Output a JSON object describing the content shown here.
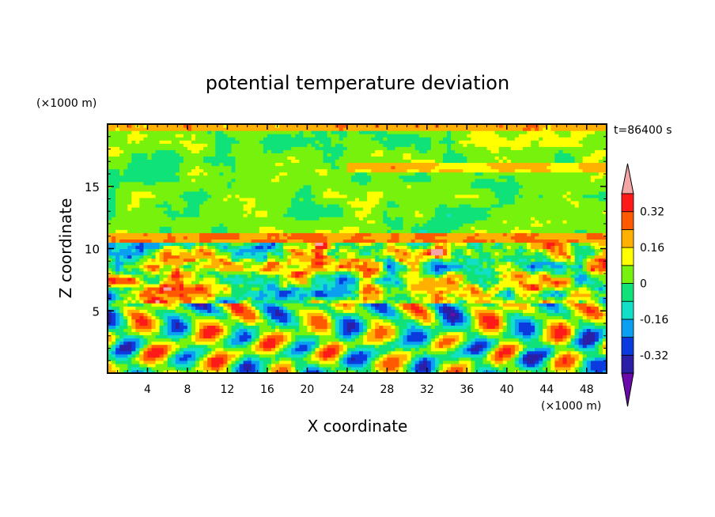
{
  "chart_data": {
    "type": "heatmap",
    "title": "potential temperature deviation",
    "xlabel": "X coordinate",
    "ylabel": "Z coordinate",
    "x_unit": "(×1000 m)",
    "y_unit": "(×1000 m)",
    "time_label": "t=86400 s",
    "xlim": [
      0,
      50
    ],
    "ylim": [
      0,
      20
    ],
    "x_ticks": [
      4,
      8,
      12,
      16,
      20,
      24,
      28,
      32,
      36,
      40,
      44,
      48
    ],
    "y_ticks": [
      5,
      10,
      15
    ],
    "colorbar": {
      "levels": [
        -0.4,
        -0.32,
        -0.24,
        -0.16,
        -0.08,
        0,
        0.08,
        0.16,
        0.24,
        0.32,
        0.4
      ],
      "colors": [
        "#6a0aab",
        "#2a1fa6",
        "#0b3bde",
        "#0a9ff0",
        "#12e0c6",
        "#10e27a",
        "#77f20c",
        "#ffff00",
        "#ffb000",
        "#ff5a00",
        "#ff1a1a",
        "#f4a6a6"
      ],
      "labels": [
        "0.32",
        "0.16",
        "0",
        "-0.16",
        "-0.32"
      ],
      "label_values": [
        0.32,
        0.16,
        0,
        -0.16,
        -0.32
      ],
      "extend": "both"
    },
    "field_description_bands": [
      {
        "z_range": [
          0,
          5.5
        ],
        "pattern": "oscillating warm/cold plumes"
      },
      {
        "z_range": [
          5.5,
          10.5
        ],
        "pattern": "mixed warm and cold patches"
      },
      {
        "z_range": [
          10.5,
          11.2
        ],
        "pattern": "warm stable layer"
      },
      {
        "z_range": [
          11.2,
          20
        ],
        "pattern": "near-zero green with small cold patches"
      }
    ]
  }
}
